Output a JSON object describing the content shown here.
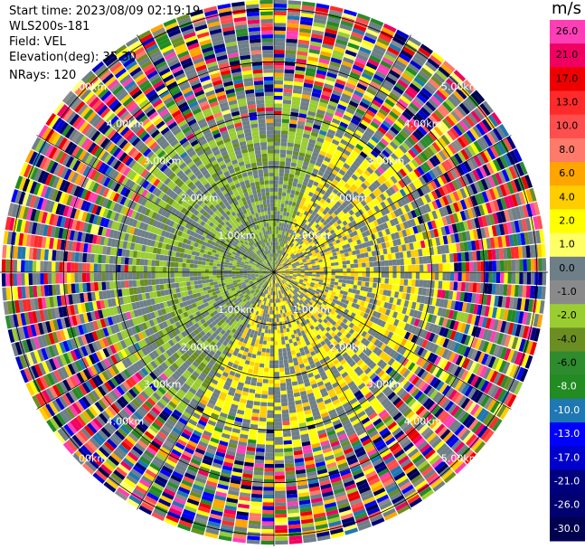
{
  "header": {
    "start_time": "Start time: 2023/08/09 02:19:19",
    "station": "WLS200s-181",
    "field": "Field: VEL",
    "elevation": "Elevation(deg): 35.30",
    "nrays": "NRays: 120"
  },
  "colorbar": {
    "unit": "m/s",
    "levels": [
      26.0,
      21.0,
      17.0,
      13.0,
      10.0,
      8.0,
      6.0,
      4.0,
      2.0,
      1.0,
      0.0,
      -1.0,
      -2.0,
      -4.0,
      -6.0,
      -8.0,
      -10.0,
      -13.0,
      -17.0,
      -21.0,
      -26.0,
      -30.0
    ],
    "tick_labels": [
      "26.0",
      "21.0",
      "17.0",
      "13.0",
      "10.0",
      "8.0",
      "6.0",
      "4.0",
      "2.0",
      "1.0",
      "0.0",
      "-1.0",
      "-2.0",
      "-4.0",
      "-6.0",
      "-8.0",
      "-10.0",
      "-13.0",
      "-17.0",
      "-21.0",
      "-26.0",
      "-30.0"
    ],
    "colors": [
      "#ff3eb5",
      "#f00060",
      "#ef0000",
      "#ff2a2a",
      "#ff4e4e",
      "#ff7a6a",
      "#ffa500",
      "#ffcd00",
      "#ffff00",
      "#ffff66",
      "#6e7f88",
      "#8a8a8a",
      "#9acd32",
      "#6b8e23",
      "#2e8b2e",
      "#228b22",
      "#1f77b4",
      "#0000ff",
      "#0000cd",
      "#00007f",
      "#000070",
      "#000050"
    ]
  },
  "chart_data": {
    "type": "heatmap",
    "projection": "polar PPI",
    "field": "VEL",
    "units": "m/s",
    "nrays": 120,
    "range_ring_labels": [
      "1.00km",
      "2.00km",
      "3.00km",
      "4.00km",
      "5.00km"
    ],
    "range_rings_km": [
      1,
      2,
      3,
      4,
      5
    ],
    "max_range_km": 5.0,
    "value_range": [
      -30,
      26
    ],
    "sectors_description_values": {
      "near_west_north": -2.0,
      "near_east_south": 2.0,
      "background": 0.0,
      "outer_mixed": "noise"
    }
  }
}
